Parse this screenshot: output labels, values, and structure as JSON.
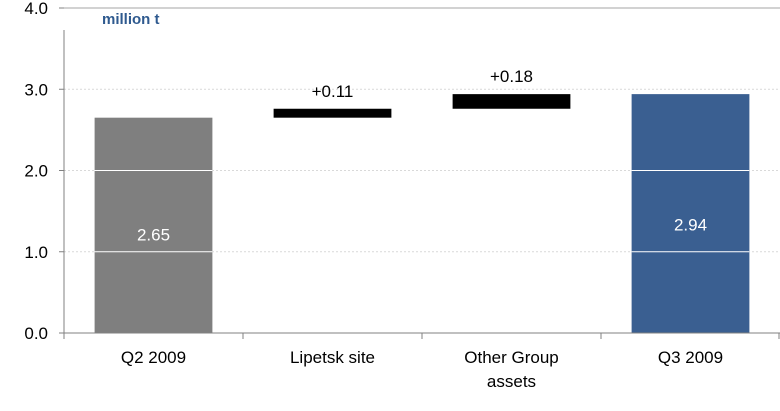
{
  "chart_data": {
    "type": "bar",
    "subtype": "waterfall",
    "unit_label": "million t",
    "categories": [
      [
        "Q2 2009"
      ],
      [
        "Lipetsk site"
      ],
      [
        "Other Group",
        "assets"
      ],
      [
        "Q3 2009"
      ]
    ],
    "bars": [
      {
        "kind": "total",
        "start": 0,
        "end": 2.65,
        "label": "2.65",
        "color": "#7f7f7f",
        "label_position": "inside"
      },
      {
        "kind": "delta",
        "start": 2.65,
        "end": 2.76,
        "label": "+0.11",
        "color": "#000000",
        "label_position": "above"
      },
      {
        "kind": "delta",
        "start": 2.76,
        "end": 2.94,
        "label": "+0.18",
        "color": "#000000",
        "label_position": "above"
      },
      {
        "kind": "total",
        "start": 0,
        "end": 2.94,
        "label": "2.94",
        "color": "#3a5f91",
        "label_position": "inside"
      }
    ],
    "ylim": [
      0,
      4
    ],
    "yticks": [
      "0.0",
      "1.0",
      "2.0",
      "3.0",
      "4.0"
    ],
    "ytick_values": [
      0,
      1,
      2,
      3,
      4
    ],
    "grid": true
  }
}
